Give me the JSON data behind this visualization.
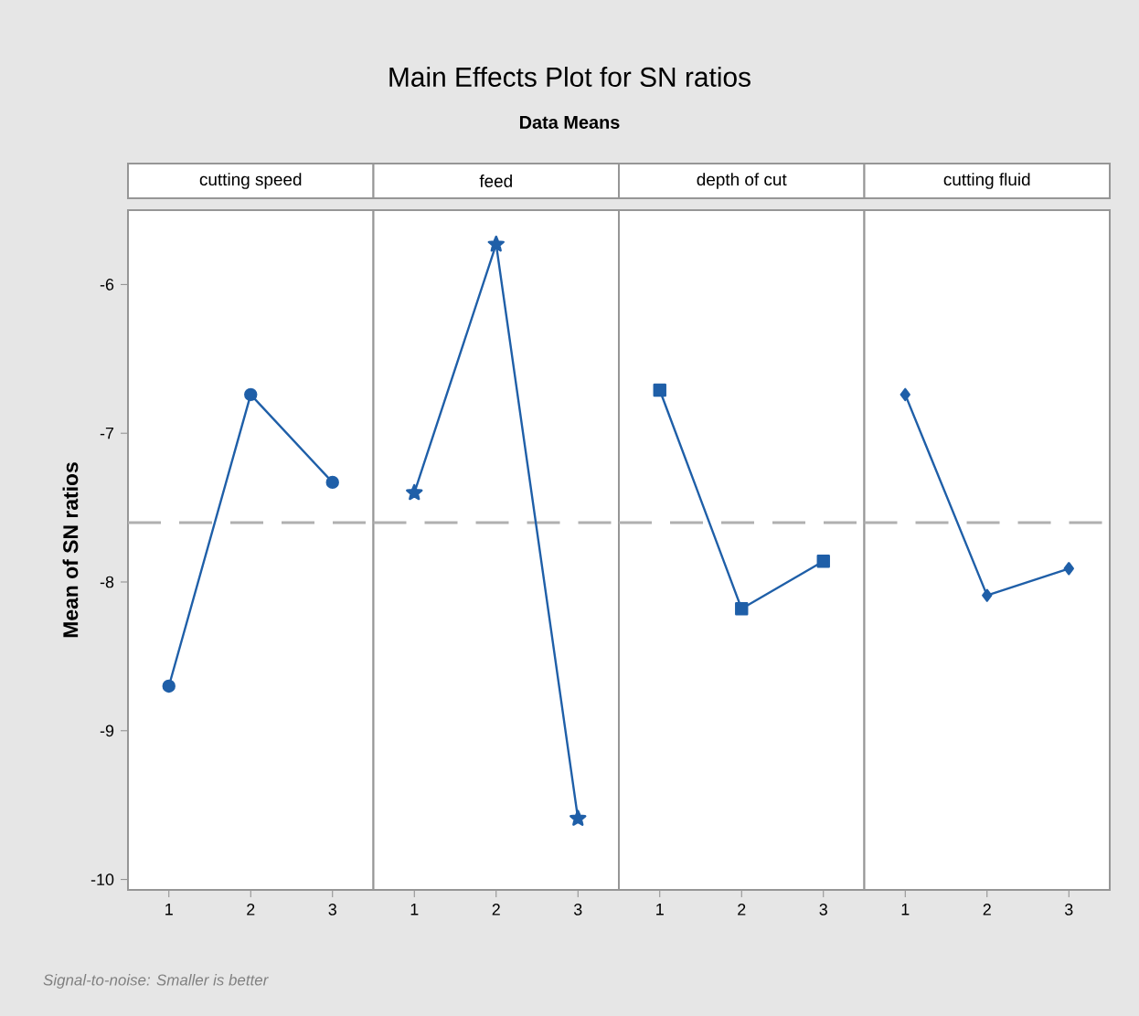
{
  "chart_data": [
    {
      "type": "line",
      "title": "cutting speed",
      "ylabel": "Mean of SN ratios",
      "annotations": [
        "Main Effects Plot for SN ratios",
        "Data Means",
        "Signal-to-noise: Smaller is better"
      ],
      "categories": [
        "1",
        "2",
        "3"
      ],
      "values": [
        -8.7,
        -6.74,
        -7.33
      ],
      "color": "#1f5fa8",
      "marker": "circle",
      "line_style": "solid",
      "ylim": [
        -10.07,
        -5.5
      ],
      "yticks": [
        -10,
        -9,
        -8,
        -7,
        -6
      ],
      "ref_lines": [
        {
          "axis": "y",
          "value": -7.6,
          "color": "#b0b0b0",
          "line_style": "dashed"
        }
      ]
    },
    {
      "type": "line",
      "title": "feed",
      "categories": [
        "1",
        "2",
        "3"
      ],
      "values": [
        -7.4,
        -5.73,
        -9.59
      ],
      "color": "#1f5fa8",
      "marker": "star",
      "line_style": "solid",
      "ylim": [
        -10.07,
        -5.5
      ],
      "yticks": [
        -10,
        -9,
        -8,
        -7,
        -6
      ],
      "tick_labels": "x",
      "ref_lines": [
        {
          "axis": "y",
          "value": -7.6,
          "color": "#b0b0b0",
          "line_style": "dashed"
        }
      ]
    },
    {
      "type": "line",
      "title": "depth of cut",
      "categories": [
        "1",
        "2",
        "3"
      ],
      "values": [
        -6.71,
        -8.18,
        -7.86
      ],
      "color": "#1f5fa8",
      "marker": "square",
      "line_style": "solid",
      "ylim": [
        -10.07,
        -5.5
      ],
      "yticks": [
        -10,
        -9,
        -8,
        -7,
        -6
      ],
      "tick_labels": "x",
      "ref_lines": [
        {
          "axis": "y",
          "value": -7.6,
          "color": "#b0b0b0",
          "line_style": "dashed"
        }
      ]
    },
    {
      "type": "line",
      "title": "cutting fluid",
      "categories": [
        "1",
        "2",
        "3"
      ],
      "values": [
        -6.74,
        -8.09,
        -7.91
      ],
      "color": "#1f5fa8",
      "marker": "diamond",
      "line_style": "solid",
      "ylim": [
        -10.07,
        -5.5
      ],
      "yticks": [
        -10,
        -9,
        -8,
        -7,
        -6
      ],
      "tick_labels": "x",
      "ref_lines": [
        {
          "axis": "y",
          "value": -7.6,
          "color": "#b0b0b0",
          "line_style": "dashed"
        }
      ]
    }
  ]
}
